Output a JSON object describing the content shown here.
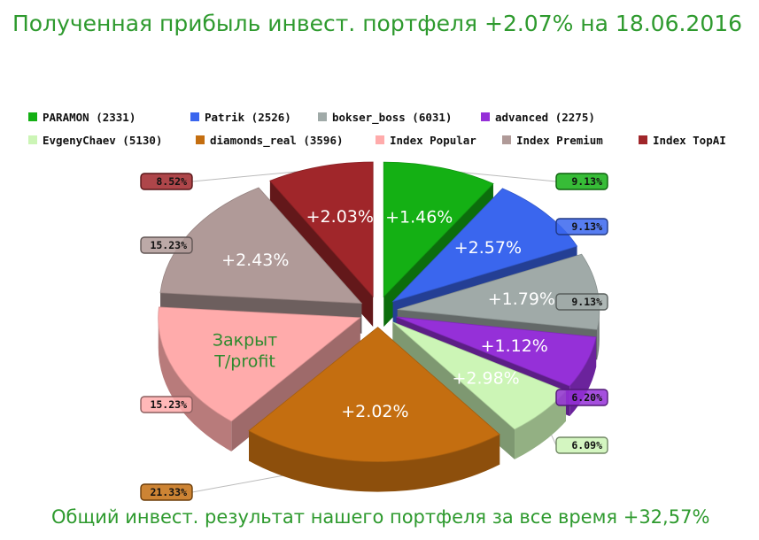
{
  "title": "Полученная прибыль инвест. портфеля +2.07% на 18.06.2016",
  "footer": "Общий инвест. результат нашего портфеля за все время +32,57%",
  "chart_data": {
    "type": "pie",
    "title": "Полученная прибыль инвест. портфеля +2.07% на 18.06.2016",
    "legend_position": "top",
    "slices": [
      {
        "name": "PARAMON (2331)",
        "share_label": "9.13%",
        "share": 9.13,
        "gain": "+1.46%",
        "color": "#14b014"
      },
      {
        "name": "Patrik (2526)",
        "share_label": "9.13%",
        "share": 9.13,
        "gain": "+2.57%",
        "color": "#3a66ee"
      },
      {
        "name": "bokser_boss (6031)",
        "share_label": "9.13%",
        "share": 9.13,
        "gain": "+1.79%",
        "color": "#a0aaa8"
      },
      {
        "name": "advanced (2275)",
        "share_label": "6.20%",
        "share": 6.2,
        "gain": "+1.12%",
        "color": "#9530d8"
      },
      {
        "name": "EvgenyChaev (5130)",
        "share_label": "6.09%",
        "share": 6.09,
        "gain": "+2.98%",
        "color": "#ccf5b6"
      },
      {
        "name": "diamonds_real (3596)",
        "share_label": "21.33%",
        "share": 21.33,
        "gain": "+2.02%",
        "color": "#c46e10"
      },
      {
        "name": "Index Popular",
        "share_label": "15.23%",
        "share": 15.23,
        "gain": "Закрыт\nT/profit",
        "color": "#ffabab"
      },
      {
        "name": "Index Premium",
        "share_label": "15.23%",
        "share": 15.23,
        "gain": "+2.43%",
        "color": "#b09a98"
      },
      {
        "name": "Index TopAI",
        "share_label": "8.52%",
        "share": 8.52,
        "gain": "+2.03%",
        "color": "#a0262a"
      }
    ]
  }
}
